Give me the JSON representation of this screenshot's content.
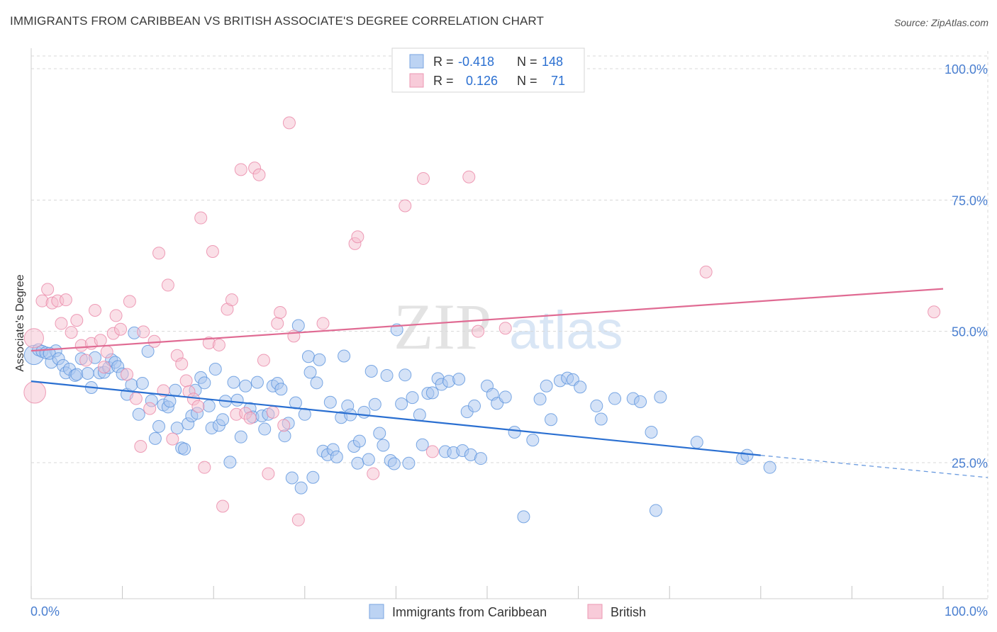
{
  "title": "IMMIGRANTS FROM CARIBBEAN VS BRITISH ASSOCIATE'S DEGREE CORRELATION CHART",
  "source": "Source: ZipAtlas.com",
  "watermark": {
    "zip": "ZIP",
    "atlas": "atlas"
  },
  "colors": {
    "blue": "#5b93dd",
    "blue_fill": "#a9c6ef",
    "blue_line": "#2a6fd1",
    "pink": "#ea86a6",
    "pink_fill": "#f6bfd0",
    "pink_line": "#e06b93",
    "tick_blue": "#4a7fd0",
    "grid": "#d8d8d8"
  },
  "legend_stats": [
    {
      "r_label": "R =",
      "r_value": "-0.418",
      "n_label": "N =",
      "n_value": "148"
    },
    {
      "r_label": "R =",
      "r_value": "0.126",
      "n_label": "N =",
      "n_value": "71"
    }
  ],
  "chart_data": {
    "type": "scatter",
    "title": "IMMIGRANTS FROM CARIBBEAN VS BRITISH ASSOCIATE'S DEGREE CORRELATION CHART",
    "xlabel": "",
    "ylabel": "Associate's Degree",
    "xlim": [
      0,
      100
    ],
    "ylim": [
      0,
      104
    ],
    "x_tick_labels": [
      "0.0%",
      "100.0%"
    ],
    "y_ticks": [
      25,
      50,
      75,
      100
    ],
    "y_tick_labels": [
      "25.0%",
      "50.0%",
      "75.0%",
      "100.0%"
    ],
    "grid": true,
    "legend_position": "bottom",
    "series": [
      {
        "name": "Immigrants from Caribbean",
        "color": "#5b93dd",
        "trend": {
          "x0": 0,
          "y0": 40.5,
          "x1": 80,
          "y1": 26.4,
          "dashed_to_x": 100,
          "dashed_to_y": 23.0
        },
        "points": [
          [
            0.3,
            45.5,
            16
          ],
          [
            0.8,
            46.5,
            10
          ],
          [
            1.2,
            46.2,
            10
          ],
          [
            1.6,
            45.9,
            10
          ],
          [
            2.2,
            44.1,
            10
          ],
          [
            2.7,
            46.3,
            10
          ],
          [
            2.0,
            45.8,
            10
          ],
          [
            3.0,
            44.8,
            10
          ],
          [
            3.5,
            43.5,
            10
          ],
          [
            3.8,
            42.1,
            10
          ],
          [
            4.2,
            42.8,
            10
          ],
          [
            4.8,
            41.6,
            10
          ],
          [
            5.0,
            41.8,
            10
          ],
          [
            5.5,
            44.8,
            10
          ],
          [
            6.2,
            42.0,
            10
          ],
          [
            6.6,
            39.3,
            10
          ],
          [
            7.0,
            45.0,
            10
          ],
          [
            7.5,
            42.1,
            10
          ],
          [
            8.0,
            42.2,
            10
          ],
          [
            8.5,
            43.1,
            10
          ],
          [
            8.8,
            44.6,
            10
          ],
          [
            9.2,
            44.1,
            10
          ],
          [
            9.5,
            43.3,
            10
          ],
          [
            10.0,
            41.9,
            10
          ],
          [
            10.5,
            38.0,
            10
          ],
          [
            11.0,
            39.8,
            10
          ],
          [
            11.3,
            49.7,
            10
          ],
          [
            11.8,
            34.2,
            10
          ],
          [
            12.2,
            40.1,
            10
          ],
          [
            12.8,
            46.2,
            10
          ],
          [
            13.2,
            36.8,
            10
          ],
          [
            13.6,
            29.6,
            10
          ],
          [
            14.0,
            31.9,
            10
          ],
          [
            14.5,
            36.0,
            10
          ],
          [
            15.0,
            35.6,
            10
          ],
          [
            15.2,
            36.7,
            10
          ],
          [
            15.8,
            38.8,
            10
          ],
          [
            16.0,
            31.6,
            10
          ],
          [
            16.5,
            27.8,
            10
          ],
          [
            16.8,
            27.6,
            10
          ],
          [
            17.2,
            32.4,
            10
          ],
          [
            17.6,
            33.9,
            10
          ],
          [
            18.0,
            38.8,
            10
          ],
          [
            18.2,
            34.4,
            10
          ],
          [
            18.6,
            41.2,
            10
          ],
          [
            19.0,
            40.2,
            10
          ],
          [
            19.5,
            35.8,
            10
          ],
          [
            19.8,
            31.6,
            10
          ],
          [
            20.2,
            42.8,
            10
          ],
          [
            20.6,
            32.1,
            10
          ],
          [
            21.0,
            33.2,
            10
          ],
          [
            21.3,
            36.7,
            10
          ],
          [
            21.8,
            25.1,
            10
          ],
          [
            22.2,
            40.3,
            10
          ],
          [
            22.6,
            36.9,
            10
          ],
          [
            23.0,
            29.9,
            10
          ],
          [
            23.5,
            39.6,
            10
          ],
          [
            24.0,
            35.3,
            10
          ],
          [
            24.3,
            33.7,
            10
          ],
          [
            24.8,
            40.3,
            10
          ],
          [
            25.3,
            33.9,
            10
          ],
          [
            25.6,
            31.4,
            10
          ],
          [
            26.0,
            34.2,
            10
          ],
          [
            26.5,
            39.6,
            10
          ],
          [
            27.0,
            40.1,
            10
          ],
          [
            27.4,
            39.0,
            10
          ],
          [
            27.8,
            30.1,
            10
          ],
          [
            28.2,
            32.5,
            10
          ],
          [
            28.6,
            22.1,
            10
          ],
          [
            29.0,
            36.4,
            10
          ],
          [
            29.3,
            51.1,
            10
          ],
          [
            29.6,
            20.2,
            10
          ],
          [
            30.0,
            34.2,
            10
          ],
          [
            30.4,
            45.2,
            10
          ],
          [
            30.6,
            42.2,
            10
          ],
          [
            30.9,
            22.2,
            10
          ],
          [
            31.3,
            40.2,
            10
          ],
          [
            31.6,
            44.6,
            10
          ],
          [
            32.0,
            27.2,
            10
          ],
          [
            32.5,
            26.5,
            10
          ],
          [
            32.8,
            36.5,
            10
          ],
          [
            33.1,
            27.5,
            10
          ],
          [
            33.5,
            26.1,
            10
          ],
          [
            34.0,
            33.6,
            10
          ],
          [
            34.3,
            45.3,
            10
          ],
          [
            34.7,
            35.8,
            10
          ],
          [
            35.0,
            34.1,
            10
          ],
          [
            35.4,
            28.1,
            10
          ],
          [
            35.8,
            24.9,
            10
          ],
          [
            36.0,
            29.1,
            10
          ],
          [
            36.5,
            34.6,
            10
          ],
          [
            37.0,
            25.6,
            10
          ],
          [
            37.3,
            42.4,
            10
          ],
          [
            37.7,
            36.1,
            10
          ],
          [
            38.2,
            30.6,
            10
          ],
          [
            38.6,
            28.3,
            10
          ],
          [
            39.0,
            41.6,
            10
          ],
          [
            39.4,
            25.4,
            10
          ],
          [
            39.8,
            24.8,
            10
          ],
          [
            40.1,
            50.3,
            10
          ],
          [
            40.6,
            36.2,
            10
          ],
          [
            41.0,
            41.7,
            10
          ],
          [
            41.4,
            24.9,
            10
          ],
          [
            41.8,
            37.4,
            10
          ],
          [
            42.6,
            34.1,
            10
          ],
          [
            42.9,
            28.4,
            10
          ],
          [
            43.5,
            38.2,
            10
          ],
          [
            44.0,
            38.3,
            10
          ],
          [
            44.6,
            41.0,
            10
          ],
          [
            45.0,
            39.9,
            10
          ],
          [
            45.4,
            27.1,
            10
          ],
          [
            45.8,
            40.5,
            10
          ],
          [
            46.3,
            26.9,
            10
          ],
          [
            46.9,
            40.9,
            10
          ],
          [
            47.3,
            27.3,
            10
          ],
          [
            47.8,
            34.7,
            10
          ],
          [
            48.2,
            26.5,
            10
          ],
          [
            48.6,
            35.8,
            10
          ],
          [
            49.3,
            25.8,
            10
          ],
          [
            50.0,
            39.6,
            10
          ],
          [
            50.6,
            38.0,
            10
          ],
          [
            51.1,
            36.3,
            10
          ],
          [
            52.0,
            37.5,
            10
          ],
          [
            53.0,
            30.8,
            10
          ],
          [
            54.0,
            14.7,
            10
          ],
          [
            55.0,
            29.3,
            10
          ],
          [
            55.8,
            37.1,
            10
          ],
          [
            56.5,
            39.6,
            10
          ],
          [
            57.0,
            33.2,
            10
          ],
          [
            58.0,
            40.6,
            10
          ],
          [
            58.8,
            41.1,
            10
          ],
          [
            59.4,
            40.8,
            10
          ],
          [
            60.2,
            39.4,
            10
          ],
          [
            62.0,
            35.8,
            10
          ],
          [
            62.5,
            33.3,
            10
          ],
          [
            64.0,
            37.2,
            10
          ],
          [
            66.0,
            37.2,
            10
          ],
          [
            66.8,
            36.6,
            10
          ],
          [
            68.0,
            30.8,
            10
          ],
          [
            68.5,
            15.9,
            10
          ],
          [
            69.0,
            37.5,
            10
          ],
          [
            73.0,
            28.9,
            10
          ],
          [
            78.0,
            25.8,
            10
          ],
          [
            78.5,
            26.4,
            10
          ],
          [
            81.0,
            24.1,
            10
          ]
        ]
      },
      {
        "name": "British",
        "color": "#ea86a6",
        "trend": {
          "x0": 0,
          "y0": 46.3,
          "x1": 100,
          "y1": 58.1
        },
        "points": [
          [
            0.3,
            48.7,
            16
          ],
          [
            0.4,
            38.4,
            18
          ],
          [
            1.2,
            55.8,
            10
          ],
          [
            1.8,
            58.0,
            10
          ],
          [
            2.3,
            55.4,
            10
          ],
          [
            2.9,
            55.8,
            10
          ],
          [
            3.3,
            51.5,
            10
          ],
          [
            3.8,
            56.0,
            10
          ],
          [
            4.4,
            49.8,
            10
          ],
          [
            5.0,
            52.1,
            10
          ],
          [
            5.5,
            47.3,
            10
          ],
          [
            6.0,
            44.5,
            10
          ],
          [
            6.6,
            47.7,
            10
          ],
          [
            7.0,
            54.0,
            10
          ],
          [
            7.6,
            48.3,
            10
          ],
          [
            8.0,
            43.2,
            10
          ],
          [
            8.3,
            46.1,
            10
          ],
          [
            9.0,
            49.6,
            10
          ],
          [
            9.3,
            53.0,
            10
          ],
          [
            9.8,
            50.4,
            10
          ],
          [
            10.5,
            41.8,
            10
          ],
          [
            10.8,
            55.7,
            10
          ],
          [
            11.5,
            37.2,
            10
          ],
          [
            12.0,
            28.1,
            10
          ],
          [
            12.3,
            49.9,
            10
          ],
          [
            13.0,
            35.3,
            10
          ],
          [
            13.5,
            48.1,
            10
          ],
          [
            14.0,
            64.9,
            10
          ],
          [
            14.5,
            38.7,
            10
          ],
          [
            15.0,
            58.8,
            10
          ],
          [
            15.5,
            29.5,
            10
          ],
          [
            16.0,
            45.4,
            10
          ],
          [
            16.5,
            43.8,
            10
          ],
          [
            17.0,
            40.6,
            10
          ],
          [
            17.3,
            38.5,
            10
          ],
          [
            17.8,
            37.1,
            10
          ],
          [
            18.3,
            35.7,
            10
          ],
          [
            18.6,
            71.6,
            10
          ],
          [
            19.0,
            24.1,
            10
          ],
          [
            19.5,
            47.8,
            10
          ],
          [
            19.9,
            65.2,
            10
          ],
          [
            20.6,
            47.4,
            10
          ],
          [
            21.0,
            16.7,
            10
          ],
          [
            21.5,
            54.2,
            10
          ],
          [
            22.0,
            56.0,
            10
          ],
          [
            22.5,
            34.2,
            10
          ],
          [
            23.0,
            80.8,
            10
          ],
          [
            23.5,
            34.4,
            10
          ],
          [
            24.0,
            33.5,
            10
          ],
          [
            24.5,
            81.1,
            10
          ],
          [
            25.0,
            79.8,
            10
          ],
          [
            25.5,
            44.5,
            10
          ],
          [
            26.0,
            22.9,
            10
          ],
          [
            26.5,
            34.6,
            10
          ],
          [
            27.0,
            51.5,
            10
          ],
          [
            27.3,
            53.6,
            10
          ],
          [
            27.7,
            32.1,
            10
          ],
          [
            28.3,
            89.7,
            10
          ],
          [
            28.8,
            49.1,
            10
          ],
          [
            29.3,
            14.1,
            10
          ],
          [
            32.0,
            51.5,
            10
          ],
          [
            35.5,
            66.7,
            10
          ],
          [
            35.8,
            68.0,
            10
          ],
          [
            37.5,
            22.9,
            10
          ],
          [
            41.0,
            73.9,
            10
          ],
          [
            43.0,
            79.1,
            10
          ],
          [
            44.0,
            27.1,
            10
          ],
          [
            48.0,
            79.4,
            10
          ],
          [
            49.0,
            50.0,
            10
          ],
          [
            52.0,
            50.6,
            10
          ],
          [
            74.0,
            61.3,
            10
          ],
          [
            99.0,
            53.7,
            10
          ]
        ]
      }
    ]
  }
}
